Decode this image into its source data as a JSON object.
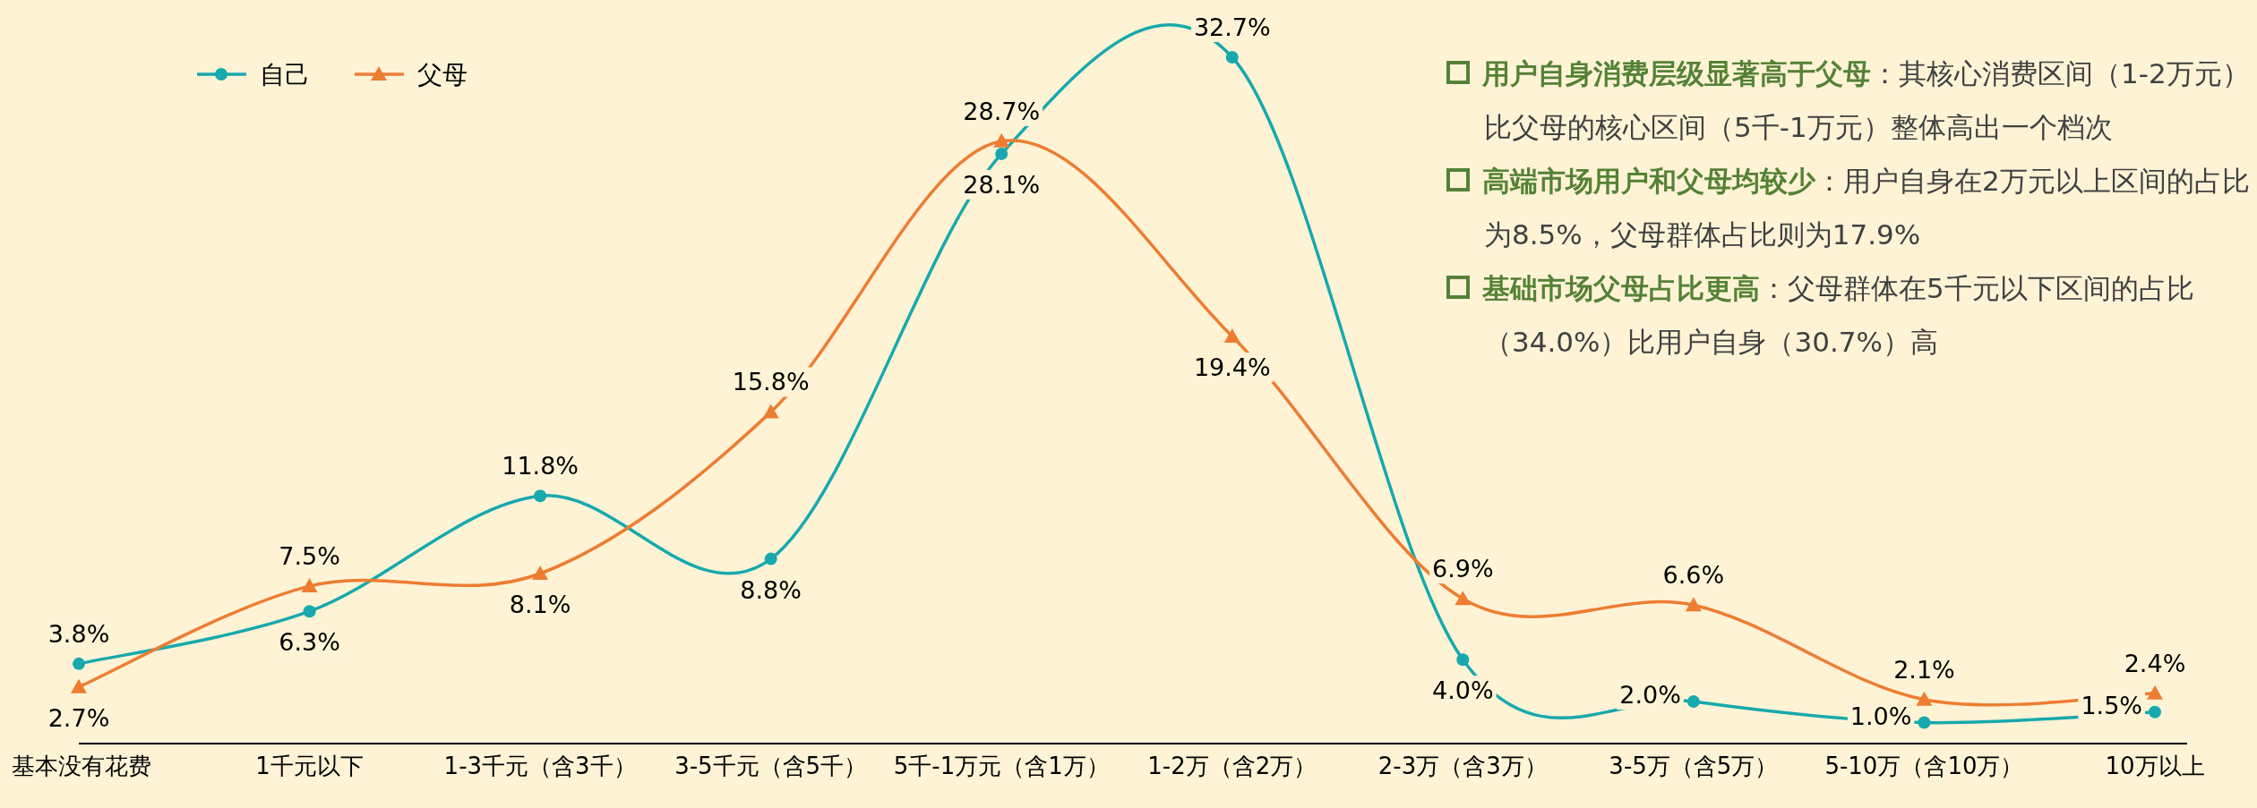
{
  "chart_data": {
    "type": "line",
    "categories": [
      "基本没有花费",
      "1千元以下",
      "1-3千元（含3千）",
      "3-5千元（含5千）",
      "5千-1万元（含1万）",
      "1-2万（含2万）",
      "2-3万（含3万）",
      "3-5万（含5万）",
      "5-10万（含10万）",
      "10万以上"
    ],
    "series": [
      {
        "name": "自己",
        "color": "#17a9ad",
        "marker": "circle",
        "values": [
          3.8,
          6.3,
          11.8,
          8.8,
          28.1,
          32.7,
          4.0,
          2.0,
          1.0,
          1.5
        ],
        "value_labels": [
          "3.8%",
          "6.3%",
          "11.8%",
          "8.8%",
          "28.1%",
          "32.7%",
          "4.0%",
          "2.0%",
          "1.0%",
          "1.5%"
        ]
      },
      {
        "name": "父母",
        "color": "#ed7d31",
        "marker": "triangle",
        "values": [
          2.7,
          7.5,
          8.1,
          15.8,
          28.7,
          19.4,
          6.9,
          6.6,
          2.1,
          2.4
        ],
        "value_labels": [
          "2.7%",
          "7.5%",
          "8.1%",
          "15.8%",
          "28.7%",
          "19.4%",
          "6.9%",
          "6.6%",
          "2.1%",
          "2.4%"
        ]
      }
    ],
    "legend": "top left",
    "annotations": [
      "用户自身消费层级显著高于父母",
      "：其核心消费区间（1-2万元）比父母的核心区间（5千-1万元）整体高出一个档次",
      "高端市场用户和父母均较少",
      "：用户自身在2万元以上区间的占比为8.5%，父母群体占比则为17.9%",
      "基础市场父母占比更高",
      "：父母群体在5千元以下区间的占比（34.0%）比用户自身（30.7%）高"
    ]
  }
}
